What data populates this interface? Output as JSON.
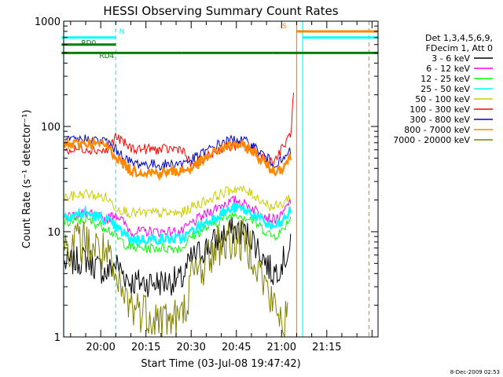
{
  "chart_data": {
    "type": "line",
    "title": "HESSI Observing Summary Count Rates",
    "xlabel": "Start Time (03-Jul-08 19:47:42)",
    "ylabel": "Count Rate (s⁻¹ detector⁻¹)",
    "y_scale": "log",
    "ylim": [
      1,
      1000
    ],
    "xlim": [
      "19:47:42",
      "21:32:00"
    ],
    "grid": false,
    "legend_position": "right",
    "x_ticks": [
      "20:00",
      "20:15",
      "20:30",
      "20:45",
      "21:00",
      "21:15"
    ],
    "y_ticks": [
      "1",
      "10",
      "100",
      "1000"
    ],
    "legend_header": [
      "Det 1,3,4,5,6,9,",
      "FDecim 1, Att 0"
    ],
    "series": [
      {
        "name": "3 - 6 keV",
        "color": "#000000",
        "x": [
          "19:48",
          "19:55",
          "20:02",
          "20:05",
          "20:10",
          "20:20",
          "20:27",
          "20:30",
          "20:40",
          "20:45",
          "20:50",
          "20:57",
          "21:00",
          "21:03"
        ],
        "values": [
          5,
          5.5,
          4,
          5,
          3.3,
          3.3,
          3.5,
          5.5,
          9,
          10.5,
          9,
          4,
          5,
          7
        ]
      },
      {
        "name": "6 - 12 keV",
        "color": "#ff00ff",
        "x": [
          "19:48",
          "19:55",
          "20:02",
          "20:05",
          "20:10",
          "20:20",
          "20:27",
          "20:30",
          "20:40",
          "20:45",
          "20:50",
          "20:57",
          "21:00",
          "21:03"
        ],
        "values": [
          14,
          15,
          13,
          15,
          10,
          10,
          10,
          12,
          18,
          20,
          17,
          13,
          14,
          20
        ]
      },
      {
        "name": "12 - 25 keV",
        "color": "#00ff00",
        "x": [
          "19:48",
          "19:55",
          "20:02",
          "20:05",
          "20:10",
          "20:20",
          "20:27",
          "20:30",
          "20:40",
          "20:45",
          "20:50",
          "20:57",
          "21:00",
          "21:03"
        ],
        "values": [
          12,
          13,
          11,
          9,
          7,
          7,
          7,
          9,
          13,
          15,
          13,
          9,
          10,
          14
        ]
      },
      {
        "name": "25 - 50 keV",
        "color": "#00ffff",
        "x": [
          "19:48",
          "19:55",
          "20:02",
          "20:05",
          "20:10",
          "20:20",
          "20:27",
          "20:30",
          "20:40",
          "20:45",
          "20:50",
          "20:57",
          "21:00",
          "21:03"
        ],
        "values": [
          14,
          15,
          13,
          11,
          8.5,
          8.5,
          8.5,
          10,
          15,
          17,
          15,
          11,
          12,
          16
        ]
      },
      {
        "name": "50 - 100 keV",
        "color": "#cccc00",
        "x": [
          "19:48",
          "19:55",
          "20:02",
          "20:05",
          "20:10",
          "20:20",
          "20:27",
          "20:30",
          "20:40",
          "20:45",
          "20:50",
          "20:57",
          "21:00",
          "21:03"
        ],
        "values": [
          21,
          23,
          21,
          17,
          15,
          15,
          15,
          17,
          23,
          26,
          23,
          17,
          18,
          22
        ]
      },
      {
        "name": "100 - 300 keV",
        "color": "#ff0000",
        "x": [
          "19:48",
          "19:55",
          "20:02",
          "20:05",
          "20:10",
          "20:20",
          "20:27",
          "20:30",
          "20:40",
          "20:45",
          "20:50",
          "20:57",
          "21:00",
          "21:03",
          "21:04"
        ],
        "values": [
          58,
          62,
          58,
          80,
          62,
          60,
          62,
          42,
          62,
          66,
          62,
          45,
          60,
          85,
          200
        ]
      },
      {
        "name": "300 - 800 keV",
        "color": "#0000cc",
        "x": [
          "19:48",
          "19:55",
          "20:02",
          "20:05",
          "20:10",
          "20:20",
          "20:27",
          "20:30",
          "20:40",
          "20:45",
          "20:50",
          "20:57",
          "21:00",
          "21:03"
        ],
        "values": [
          72,
          76,
          72,
          60,
          45,
          43,
          45,
          48,
          70,
          76,
          68,
          45,
          46,
          58
        ]
      },
      {
        "name": "800 - 7000 keV",
        "color": "#ff8800",
        "x": [
          "19:48",
          "19:55",
          "20:02",
          "20:05",
          "20:10",
          "20:20",
          "20:27",
          "20:30",
          "20:40",
          "20:45",
          "20:50",
          "20:57",
          "21:00",
          "21:03"
        ],
        "values": [
          66,
          70,
          66,
          52,
          38,
          36,
          38,
          40,
          62,
          68,
          60,
          38,
          40,
          52
        ]
      },
      {
        "name": "7000 - 20000 keV",
        "color": "#808000",
        "x": [
          "19:48",
          "19:55",
          "20:02",
          "20:05",
          "20:10",
          "20:20",
          "20:27",
          "20:30",
          "20:40",
          "20:45",
          "20:50",
          "20:57",
          "21:00",
          "21:02"
        ],
        "values": [
          7.5,
          8,
          6,
          3,
          2,
          1.5,
          1.5,
          3.5,
          8,
          8.5,
          7,
          2,
          1.5,
          1.5
        ]
      }
    ],
    "flags": [
      {
        "label": "RD0",
        "color": "#008000",
        "y_value": 600,
        "segments": [
          [
            "19:47",
            "20:05"
          ]
        ]
      },
      {
        "label": "RD4",
        "color": "#008000",
        "y_value": 500,
        "segments": [
          [
            "19:47",
            "20:27"
          ],
          [
            "20:27",
            "20:57"
          ],
          [
            "20:57",
            "21:32"
          ]
        ]
      },
      {
        "label": "N",
        "color": "#00ffff",
        "y_value": 700,
        "segments": [
          [
            "19:47",
            "20:05"
          ],
          [
            "21:07",
            "21:32"
          ]
        ]
      },
      {
        "label": "S",
        "color": "#ff8800",
        "y_value": 800,
        "segments": [
          [
            "21:05",
            "21:32"
          ]
        ]
      }
    ],
    "vertical_markers": [
      {
        "x": "19:47:42",
        "color": "#00ffff",
        "style": "solid"
      },
      {
        "x": "20:05",
        "color": "#00ffff",
        "style": "dashed"
      },
      {
        "x": "21:05",
        "color": "#ff8800",
        "style": "solid"
      },
      {
        "x": "21:07",
        "color": "#00ffff",
        "style": "solid"
      },
      {
        "x": "21:29",
        "color": "#ff8800",
        "style": "dashed"
      }
    ],
    "footer_timestamp": "8-Dec-2009 02:53"
  }
}
